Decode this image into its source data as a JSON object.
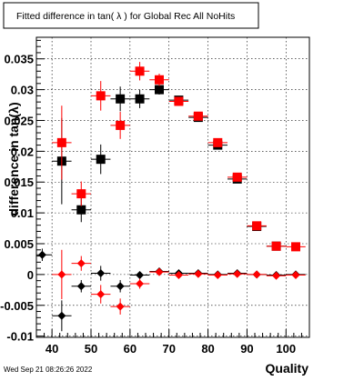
{
  "title": "Fitted difference in tan( λ ) for Global Rec All NoHits",
  "timestamp": "Wed Sep 21 08:26:26 2022",
  "chart_data": {
    "type": "scatter",
    "xlabel": "Quality",
    "ylabel": "difference in tan(λ)",
    "xlim": [
      36,
      106
    ],
    "ylim": [
      -0.0102,
      0.0385
    ],
    "grid": true,
    "x_ticks": [
      {
        "v": 40,
        "label": "40"
      },
      {
        "v": 50,
        "label": "50"
      },
      {
        "v": 60,
        "label": "60"
      },
      {
        "v": 70,
        "label": "70"
      },
      {
        "v": 80,
        "label": "80"
      },
      {
        "v": 90,
        "label": "90"
      },
      {
        "v": 100,
        "label": "100"
      }
    ],
    "y_ticks": [
      {
        "v": -0.01,
        "label": "-0.01"
      },
      {
        "v": -0.005,
        "label": "-0.005"
      },
      {
        "v": 0,
        "label": "0"
      },
      {
        "v": 0.005,
        "label": "0.005"
      },
      {
        "v": 0.01,
        "label": "0.01"
      },
      {
        "v": 0.015,
        "label": "0.015"
      },
      {
        "v": 0.02,
        "label": "0.02"
      },
      {
        "v": 0.025,
        "label": "0.025"
      },
      {
        "v": 0.03,
        "label": "0.03"
      },
      {
        "v": 0.035,
        "label": "0.035"
      }
    ],
    "series": [
      {
        "marker": "square",
        "color": "#000000",
        "points": [
          {
            "x": 42.5,
            "y": 0.0184,
            "xerr": 2.5,
            "yerr": 0.007
          },
          {
            "x": 47.5,
            "y": 0.0105,
            "xerr": 2.5,
            "yerr": 0.002
          },
          {
            "x": 52.5,
            "y": 0.0187,
            "xerr": 2.5,
            "yerr": 0.0024
          },
          {
            "x": 57.5,
            "y": 0.0285,
            "xerr": 2.5,
            "yerr": 0.002
          },
          {
            "x": 62.5,
            "y": 0.0285,
            "xerr": 2.5,
            "yerr": 0.0015
          },
          {
            "x": 67.5,
            "y": 0.03,
            "xerr": 2.5,
            "yerr": 0.0008
          },
          {
            "x": 72.5,
            "y": 0.0283,
            "xerr": 2.5,
            "yerr": 0.0005
          },
          {
            "x": 77.5,
            "y": 0.0255,
            "xerr": 2.5,
            "yerr": 0.0004
          },
          {
            "x": 82.5,
            "y": 0.021,
            "xerr": 2.5,
            "yerr": 0.0004
          },
          {
            "x": 87.5,
            "y": 0.0155,
            "xerr": 2.5,
            "yerr": 0.0004
          },
          {
            "x": 92.5,
            "y": 0.0078,
            "xerr": 2.5,
            "yerr": 0.0003
          },
          {
            "x": 97.5,
            "y": 0.0046,
            "xerr": 2.5,
            "yerr": 0.0003
          }
        ]
      },
      {
        "marker": "square",
        "color": "#ff0000",
        "points": [
          {
            "x": 42.5,
            "y": 0.0214,
            "xerr": 2.5,
            "yerr": 0.006
          },
          {
            "x": 47.5,
            "y": 0.0131,
            "xerr": 2.5,
            "yerr": 0.002
          },
          {
            "x": 52.5,
            "y": 0.029,
            "xerr": 2.5,
            "yerr": 0.0024
          },
          {
            "x": 57.5,
            "y": 0.0242,
            "xerr": 2.5,
            "yerr": 0.0022
          },
          {
            "x": 62.5,
            "y": 0.033,
            "xerr": 2.5,
            "yerr": 0.0015
          },
          {
            "x": 67.5,
            "y": 0.0316,
            "xerr": 2.5,
            "yerr": 0.001
          },
          {
            "x": 72.5,
            "y": 0.0281,
            "xerr": 2.5,
            "yerr": 0.0006
          },
          {
            "x": 77.5,
            "y": 0.0257,
            "xerr": 2.5,
            "yerr": 0.0005
          },
          {
            "x": 82.5,
            "y": 0.0214,
            "xerr": 2.5,
            "yerr": 0.0004
          },
          {
            "x": 87.5,
            "y": 0.0158,
            "xerr": 2.5,
            "yerr": 0.0004
          },
          {
            "x": 92.5,
            "y": 0.0079,
            "xerr": 2.5,
            "yerr": 0.0003
          },
          {
            "x": 97.5,
            "y": 0.0046,
            "xerr": 2.5,
            "yerr": 0.0003
          },
          {
            "x": 102.5,
            "y": 0.0045,
            "xerr": 2.5,
            "yerr": 0.0003
          }
        ]
      },
      {
        "marker": "diamond",
        "color": "#000000",
        "points": [
          {
            "x": 37.5,
            "y": 0.0032,
            "xerr": 2.5,
            "yerr": 0.001
          },
          {
            "x": 42.5,
            "y": -0.0067,
            "xerr": 2.5,
            "yerr": 0.0025
          },
          {
            "x": 47.5,
            "y": -0.0019,
            "xerr": 2.5,
            "yerr": 0.001
          },
          {
            "x": 52.5,
            "y": 0.0002,
            "xerr": 2.5,
            "yerr": 0.0012
          },
          {
            "x": 57.5,
            "y": -0.0019,
            "xerr": 2.5,
            "yerr": 0.001
          },
          {
            "x": 62.5,
            "y": -0.0001,
            "xerr": 2.5,
            "yerr": 0.0006
          },
          {
            "x": 67.5,
            "y": 0.0005,
            "xerr": 2.5,
            "yerr": 0.0004
          },
          {
            "x": 72.5,
            "y": 0.0002,
            "xerr": 2.5,
            "yerr": 0.0003
          },
          {
            "x": 77.5,
            "y": 0.0002,
            "xerr": 2.5,
            "yerr": 0.0002
          },
          {
            "x": 82.5,
            "y": 0.0,
            "xerr": 2.5,
            "yerr": 0.0002
          },
          {
            "x": 87.5,
            "y": 0.0002,
            "xerr": 2.5,
            "yerr": 0.0002
          },
          {
            "x": 92.5,
            "y": 0.0,
            "xerr": 2.5,
            "yerr": 0.0002
          },
          {
            "x": 97.5,
            "y": -0.0001,
            "xerr": 2.5,
            "yerr": 0.0002
          },
          {
            "x": 102.5,
            "y": 0.0,
            "xerr": 2.5,
            "yerr": 0.0002
          }
        ]
      },
      {
        "marker": "diamond",
        "color": "#ff0000",
        "points": [
          {
            "x": 42.5,
            "y": 0.0,
            "xerr": 2.5,
            "yerr": 0.004
          },
          {
            "x": 47.5,
            "y": 0.0018,
            "xerr": 2.5,
            "yerr": 0.0012
          },
          {
            "x": 52.5,
            "y": -0.0032,
            "xerr": 2.5,
            "yerr": 0.0015
          },
          {
            "x": 57.5,
            "y": -0.0052,
            "xerr": 2.5,
            "yerr": 0.0013
          },
          {
            "x": 62.5,
            "y": -0.0015,
            "xerr": 2.5,
            "yerr": 0.0008
          },
          {
            "x": 67.5,
            "y": 0.0004,
            "xerr": 2.5,
            "yerr": 0.0005
          },
          {
            "x": 72.5,
            "y": -0.0001,
            "xerr": 2.5,
            "yerr": 0.0003
          },
          {
            "x": 77.5,
            "y": 0.0001,
            "xerr": 2.5,
            "yerr": 0.0003
          },
          {
            "x": 82.5,
            "y": -0.0001,
            "xerr": 2.5,
            "yerr": 0.0002
          },
          {
            "x": 87.5,
            "y": 0.0001,
            "xerr": 2.5,
            "yerr": 0.0002
          },
          {
            "x": 92.5,
            "y": 0.0,
            "xerr": 2.5,
            "yerr": 0.0002
          },
          {
            "x": 97.5,
            "y": -0.0002,
            "xerr": 2.5,
            "yerr": 0.0002
          },
          {
            "x": 102.5,
            "y": -0.0001,
            "xerr": 2.5,
            "yerr": 0.0002
          }
        ]
      }
    ]
  }
}
